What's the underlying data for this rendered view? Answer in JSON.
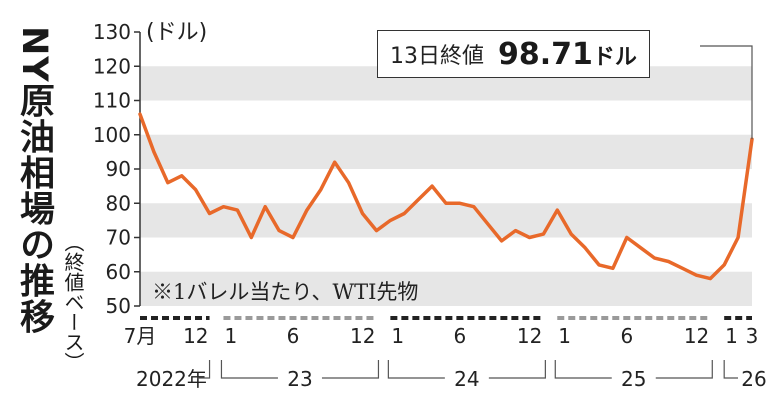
{
  "chart_data": {
    "type": "line",
    "title": "NY原油相場の推移",
    "subtitle": "（終値ベース）",
    "unit": "(ドル)",
    "note": "※1バレル当たり、WTI先物",
    "callout": {
      "label": "13日終値",
      "value": "98.71",
      "unit": "ドル"
    },
    "ylim": [
      50,
      130
    ],
    "yticks": [
      50,
      60,
      70,
      80,
      90,
      100,
      110,
      120,
      130
    ],
    "grid": "alternating bands",
    "x_range": [
      "2022-07",
      "2026-03"
    ],
    "month_ticks": [
      {
        "label": "7月",
        "x": "2022-07"
      },
      {
        "label": "12",
        "x": "2022-12"
      },
      {
        "label": "1",
        "x": "2023-01"
      },
      {
        "label": "6",
        "x": "2023-06"
      },
      {
        "label": "12",
        "x": "2023-12"
      },
      {
        "label": "1",
        "x": "2024-01"
      },
      {
        "label": "6",
        "x": "2024-06"
      },
      {
        "label": "12",
        "x": "2024-12"
      },
      {
        "label": "1",
        "x": "2025-01"
      },
      {
        "label": "6",
        "x": "2025-06"
      },
      {
        "label": "12",
        "x": "2025-12"
      },
      {
        "label": "1",
        "x": "2026-01"
      },
      {
        "label": "3",
        "x": "2026-03"
      }
    ],
    "year_labels": [
      "2022年",
      "23",
      "24",
      "25",
      "26"
    ],
    "series": [
      {
        "color": "#e8692a",
        "x": [
          "2022-07",
          "2022-08",
          "2022-09",
          "2022-10",
          "2022-11",
          "2022-12",
          "2023-01",
          "2023-02",
          "2023-03",
          "2023-04",
          "2023-05",
          "2023-06",
          "2023-07",
          "2023-08",
          "2023-09",
          "2023-10",
          "2023-11",
          "2023-12",
          "2024-01",
          "2024-02",
          "2024-03",
          "2024-04",
          "2024-05",
          "2024-06",
          "2024-07",
          "2024-08",
          "2024-09",
          "2024-10",
          "2024-11",
          "2024-12",
          "2025-01",
          "2025-02",
          "2025-03",
          "2025-04",
          "2025-05",
          "2025-06",
          "2025-07",
          "2025-08",
          "2025-09",
          "2025-10",
          "2025-11",
          "2025-12",
          "2026-01",
          "2026-02",
          "2026-03"
        ],
        "y": [
          106,
          95,
          86,
          88,
          84,
          77,
          79,
          78,
          70,
          79,
          72,
          70,
          78,
          84,
          92,
          86,
          77,
          72,
          75,
          77,
          81,
          85,
          80,
          80,
          79,
          74,
          69,
          72,
          70,
          71,
          78,
          71,
          67,
          62,
          61,
          70,
          67,
          64,
          63,
          61,
          59,
          58,
          62,
          70,
          98.71
        ]
      }
    ]
  }
}
